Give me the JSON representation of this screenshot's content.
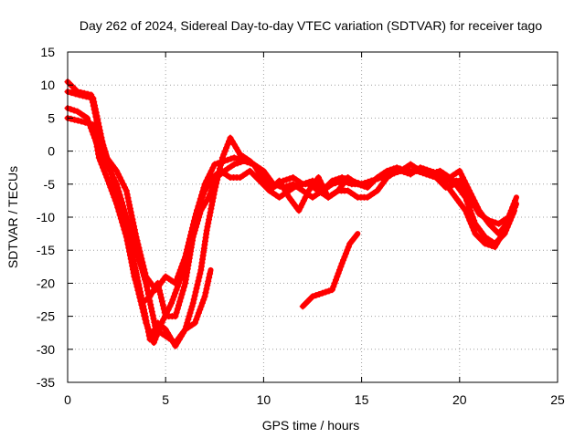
{
  "chart_data": {
    "type": "line",
    "title": "Day 262 of 2024, Sidereal Day-to-day VTEC variation (SDTVAR) for receiver tago",
    "xlabel": "GPS time / hours",
    "ylabel": "SDTVAR / TECUs",
    "xlim": [
      0,
      25
    ],
    "ylim": [
      -35,
      15
    ],
    "xticks": [
      0,
      5,
      10,
      15,
      20,
      25
    ],
    "yticks": [
      15,
      10,
      5,
      0,
      -5,
      -10,
      -15,
      -20,
      -25,
      -30,
      -35
    ],
    "grid": true,
    "series_color": "#ff0000",
    "series": [
      {
        "name": "track-1",
        "points": [
          [
            0,
            10.5
          ],
          [
            0.5,
            9
          ],
          [
            1.2,
            8.5
          ],
          [
            1.6,
            3
          ],
          [
            2.2,
            -3
          ],
          [
            2.8,
            -9
          ],
          [
            3.4,
            -17
          ],
          [
            3.9,
            -24
          ],
          [
            4.2,
            -28.5
          ],
          [
            4.6,
            -26
          ],
          [
            5.0,
            -27
          ],
          [
            5.5,
            -29.5
          ],
          [
            6.0,
            -27
          ],
          [
            6.4,
            -23
          ],
          [
            6.8,
            -18
          ],
          [
            7.1,
            -12
          ],
          [
            7.5,
            -6
          ],
          [
            7.9,
            -1
          ],
          [
            8.3,
            2
          ],
          [
            8.8,
            -0.5
          ],
          [
            9.3,
            -1.5
          ],
          [
            9.8,
            -3
          ],
          [
            10.3,
            -6
          ],
          [
            10.8,
            -4.5
          ],
          [
            11.3,
            -7
          ],
          [
            11.8,
            -9
          ],
          [
            12.3,
            -6
          ],
          [
            12.8,
            -4
          ],
          [
            13.3,
            -7
          ],
          [
            13.8,
            -6
          ],
          [
            14.3,
            -4
          ],
          [
            14.8,
            -5
          ],
          [
            15.3,
            -5.5
          ],
          [
            15.8,
            -4
          ],
          [
            16.3,
            -3
          ],
          [
            16.8,
            -2.5
          ],
          [
            17.3,
            -3
          ],
          [
            17.8,
            -3
          ],
          [
            18.3,
            -3.5
          ],
          [
            18.8,
            -4
          ],
          [
            19.3,
            -5
          ],
          [
            19.8,
            -7
          ],
          [
            20.3,
            -9
          ],
          [
            20.8,
            -12.5
          ],
          [
            21.3,
            -14
          ],
          [
            21.8,
            -14.5
          ],
          [
            22.3,
            -12
          ],
          [
            22.6,
            -10
          ],
          [
            22.9,
            -8
          ]
        ]
      },
      {
        "name": "track-2",
        "points": [
          [
            0,
            9
          ],
          [
            0.6,
            8.5
          ],
          [
            1.3,
            8
          ],
          [
            1.8,
            1
          ],
          [
            2.3,
            -4
          ],
          [
            2.9,
            -11
          ],
          [
            3.4,
            -19
          ],
          [
            3.8,
            -23
          ],
          [
            4.2,
            -22
          ],
          [
            4.6,
            -20
          ],
          [
            5.0,
            -25
          ],
          [
            5.5,
            -25
          ],
          [
            6.0,
            -20
          ],
          [
            6.4,
            -13
          ],
          [
            6.8,
            -9
          ],
          [
            7.2,
            -7
          ],
          [
            7.6,
            -4
          ],
          [
            8.0,
            -3
          ],
          [
            8.5,
            -2
          ],
          [
            9.0,
            -1.5
          ],
          [
            9.5,
            -2
          ],
          [
            10.0,
            -3
          ],
          [
            10.5,
            -5
          ],
          [
            11.0,
            -5.5
          ],
          [
            11.5,
            -5
          ],
          [
            12.0,
            -6
          ],
          [
            12.5,
            -7
          ],
          [
            13.0,
            -6
          ],
          [
            13.5,
            -5
          ],
          [
            14.0,
            -4.5
          ],
          [
            14.5,
            -5
          ],
          [
            15.0,
            -5
          ],
          [
            15.5,
            -4.5
          ],
          [
            16.0,
            -4
          ],
          [
            16.5,
            -3.5
          ],
          [
            17.0,
            -3
          ],
          [
            17.5,
            -2
          ],
          [
            18.0,
            -3
          ],
          [
            18.5,
            -3.5
          ],
          [
            19.0,
            -3
          ],
          [
            19.5,
            -4
          ],
          [
            20.0,
            -3
          ],
          [
            20.5,
            -6
          ],
          [
            21.0,
            -9
          ],
          [
            21.5,
            -11
          ],
          [
            22.0,
            -12.5
          ],
          [
            22.4,
            -11
          ],
          [
            22.8,
            -9
          ]
        ]
      },
      {
        "name": "track-3",
        "points": [
          [
            0,
            6.5
          ],
          [
            0.5,
            6
          ],
          [
            1.0,
            5
          ],
          [
            1.5,
            1
          ],
          [
            2.0,
            -2
          ],
          [
            2.5,
            -5
          ],
          [
            3.0,
            -10
          ],
          [
            3.5,
            -15
          ],
          [
            4.0,
            -20
          ],
          [
            4.5,
            -27
          ],
          [
            5.0,
            -28
          ],
          [
            5.5,
            -29
          ],
          [
            6.0,
            -27
          ],
          [
            6.5,
            -26
          ],
          [
            7.0,
            -22
          ],
          [
            7.3,
            -18
          ]
        ]
      },
      {
        "name": "track-4",
        "points": [
          [
            0,
            5
          ],
          [
            0.7,
            4.5
          ],
          [
            1.3,
            4
          ],
          [
            1.6,
            -1
          ],
          [
            2.0,
            -4
          ],
          [
            2.5,
            -8
          ],
          [
            3.0,
            -13
          ],
          [
            3.5,
            -20
          ],
          [
            4.0,
            -26
          ],
          [
            4.4,
            -29
          ],
          [
            4.8,
            -26
          ],
          [
            5.3,
            -23
          ],
          [
            5.8,
            -19
          ],
          [
            6.2,
            -14
          ],
          [
            6.6,
            -9
          ],
          [
            7.0,
            -6
          ],
          [
            7.4,
            -4
          ],
          [
            7.8,
            -3
          ],
          [
            8.3,
            -4
          ],
          [
            8.8,
            -4
          ],
          [
            9.3,
            -3
          ],
          [
            9.8,
            -4.5
          ],
          [
            10.3,
            -6
          ],
          [
            10.8,
            -7
          ],
          [
            11.3,
            -6
          ],
          [
            11.8,
            -5
          ],
          [
            12.3,
            -5
          ],
          [
            12.8,
            -6
          ],
          [
            13.3,
            -7
          ],
          [
            13.8,
            -6
          ],
          [
            14.3,
            -6
          ],
          [
            14.8,
            -7
          ],
          [
            15.3,
            -7
          ],
          [
            15.8,
            -6
          ],
          [
            16.3,
            -4
          ],
          [
            16.8,
            -3
          ],
          [
            17.3,
            -3
          ],
          [
            17.8,
            -3
          ],
          [
            18.3,
            -3
          ],
          [
            18.8,
            -4
          ],
          [
            19.3,
            -5.5
          ],
          [
            19.8,
            -5
          ],
          [
            20.3,
            -7
          ],
          [
            20.8,
            -11
          ],
          [
            21.3,
            -13
          ],
          [
            21.8,
            -14
          ],
          [
            22.3,
            -12.5
          ],
          [
            22.8,
            -9
          ]
        ]
      },
      {
        "name": "track-5",
        "points": [
          [
            1.6,
            3
          ],
          [
            2.0,
            -1
          ],
          [
            2.5,
            -3
          ],
          [
            3.0,
            -6
          ],
          [
            3.5,
            -13
          ],
          [
            4.0,
            -19
          ],
          [
            4.5,
            -21
          ],
          [
            5.0,
            -19
          ],
          [
            5.5,
            -20
          ],
          [
            6.0,
            -16
          ],
          [
            6.5,
            -10
          ],
          [
            7.0,
            -5
          ],
          [
            7.5,
            -2
          ],
          [
            8.0,
            -1.5
          ],
          [
            8.5,
            -1
          ],
          [
            9.0,
            -1.5
          ],
          [
            9.5,
            -2
          ],
          [
            10.0,
            -4.5
          ],
          [
            10.5,
            -5.5
          ],
          [
            11.0,
            -4.5
          ],
          [
            11.5,
            -4
          ],
          [
            12.0,
            -5
          ],
          [
            12.5,
            -4.5
          ],
          [
            13.0,
            -6
          ],
          [
            13.5,
            -4.5
          ],
          [
            14.0,
            -4
          ],
          [
            14.5,
            -4.5
          ],
          [
            15.0,
            -5
          ],
          [
            15.5,
            -4.5
          ],
          [
            16.0,
            -4
          ],
          [
            16.5,
            -3.5
          ],
          [
            17.0,
            -3
          ],
          [
            17.5,
            -3.5
          ],
          [
            18.0,
            -2.5
          ],
          [
            18.5,
            -3
          ],
          [
            19.0,
            -3.5
          ],
          [
            19.5,
            -4.5
          ],
          [
            20.0,
            -4.5
          ],
          [
            20.5,
            -7
          ],
          [
            21.0,
            -9.5
          ],
          [
            21.5,
            -10.5
          ],
          [
            22.0,
            -11
          ],
          [
            22.5,
            -10
          ],
          [
            22.9,
            -7
          ]
        ]
      },
      {
        "name": "track-6",
        "points": [
          [
            12.0,
            -23.5
          ],
          [
            12.5,
            -22
          ],
          [
            13.0,
            -21.5
          ],
          [
            13.5,
            -21
          ],
          [
            14.0,
            -17
          ],
          [
            14.4,
            -14
          ],
          [
            14.8,
            -12.5
          ]
        ]
      }
    ]
  }
}
